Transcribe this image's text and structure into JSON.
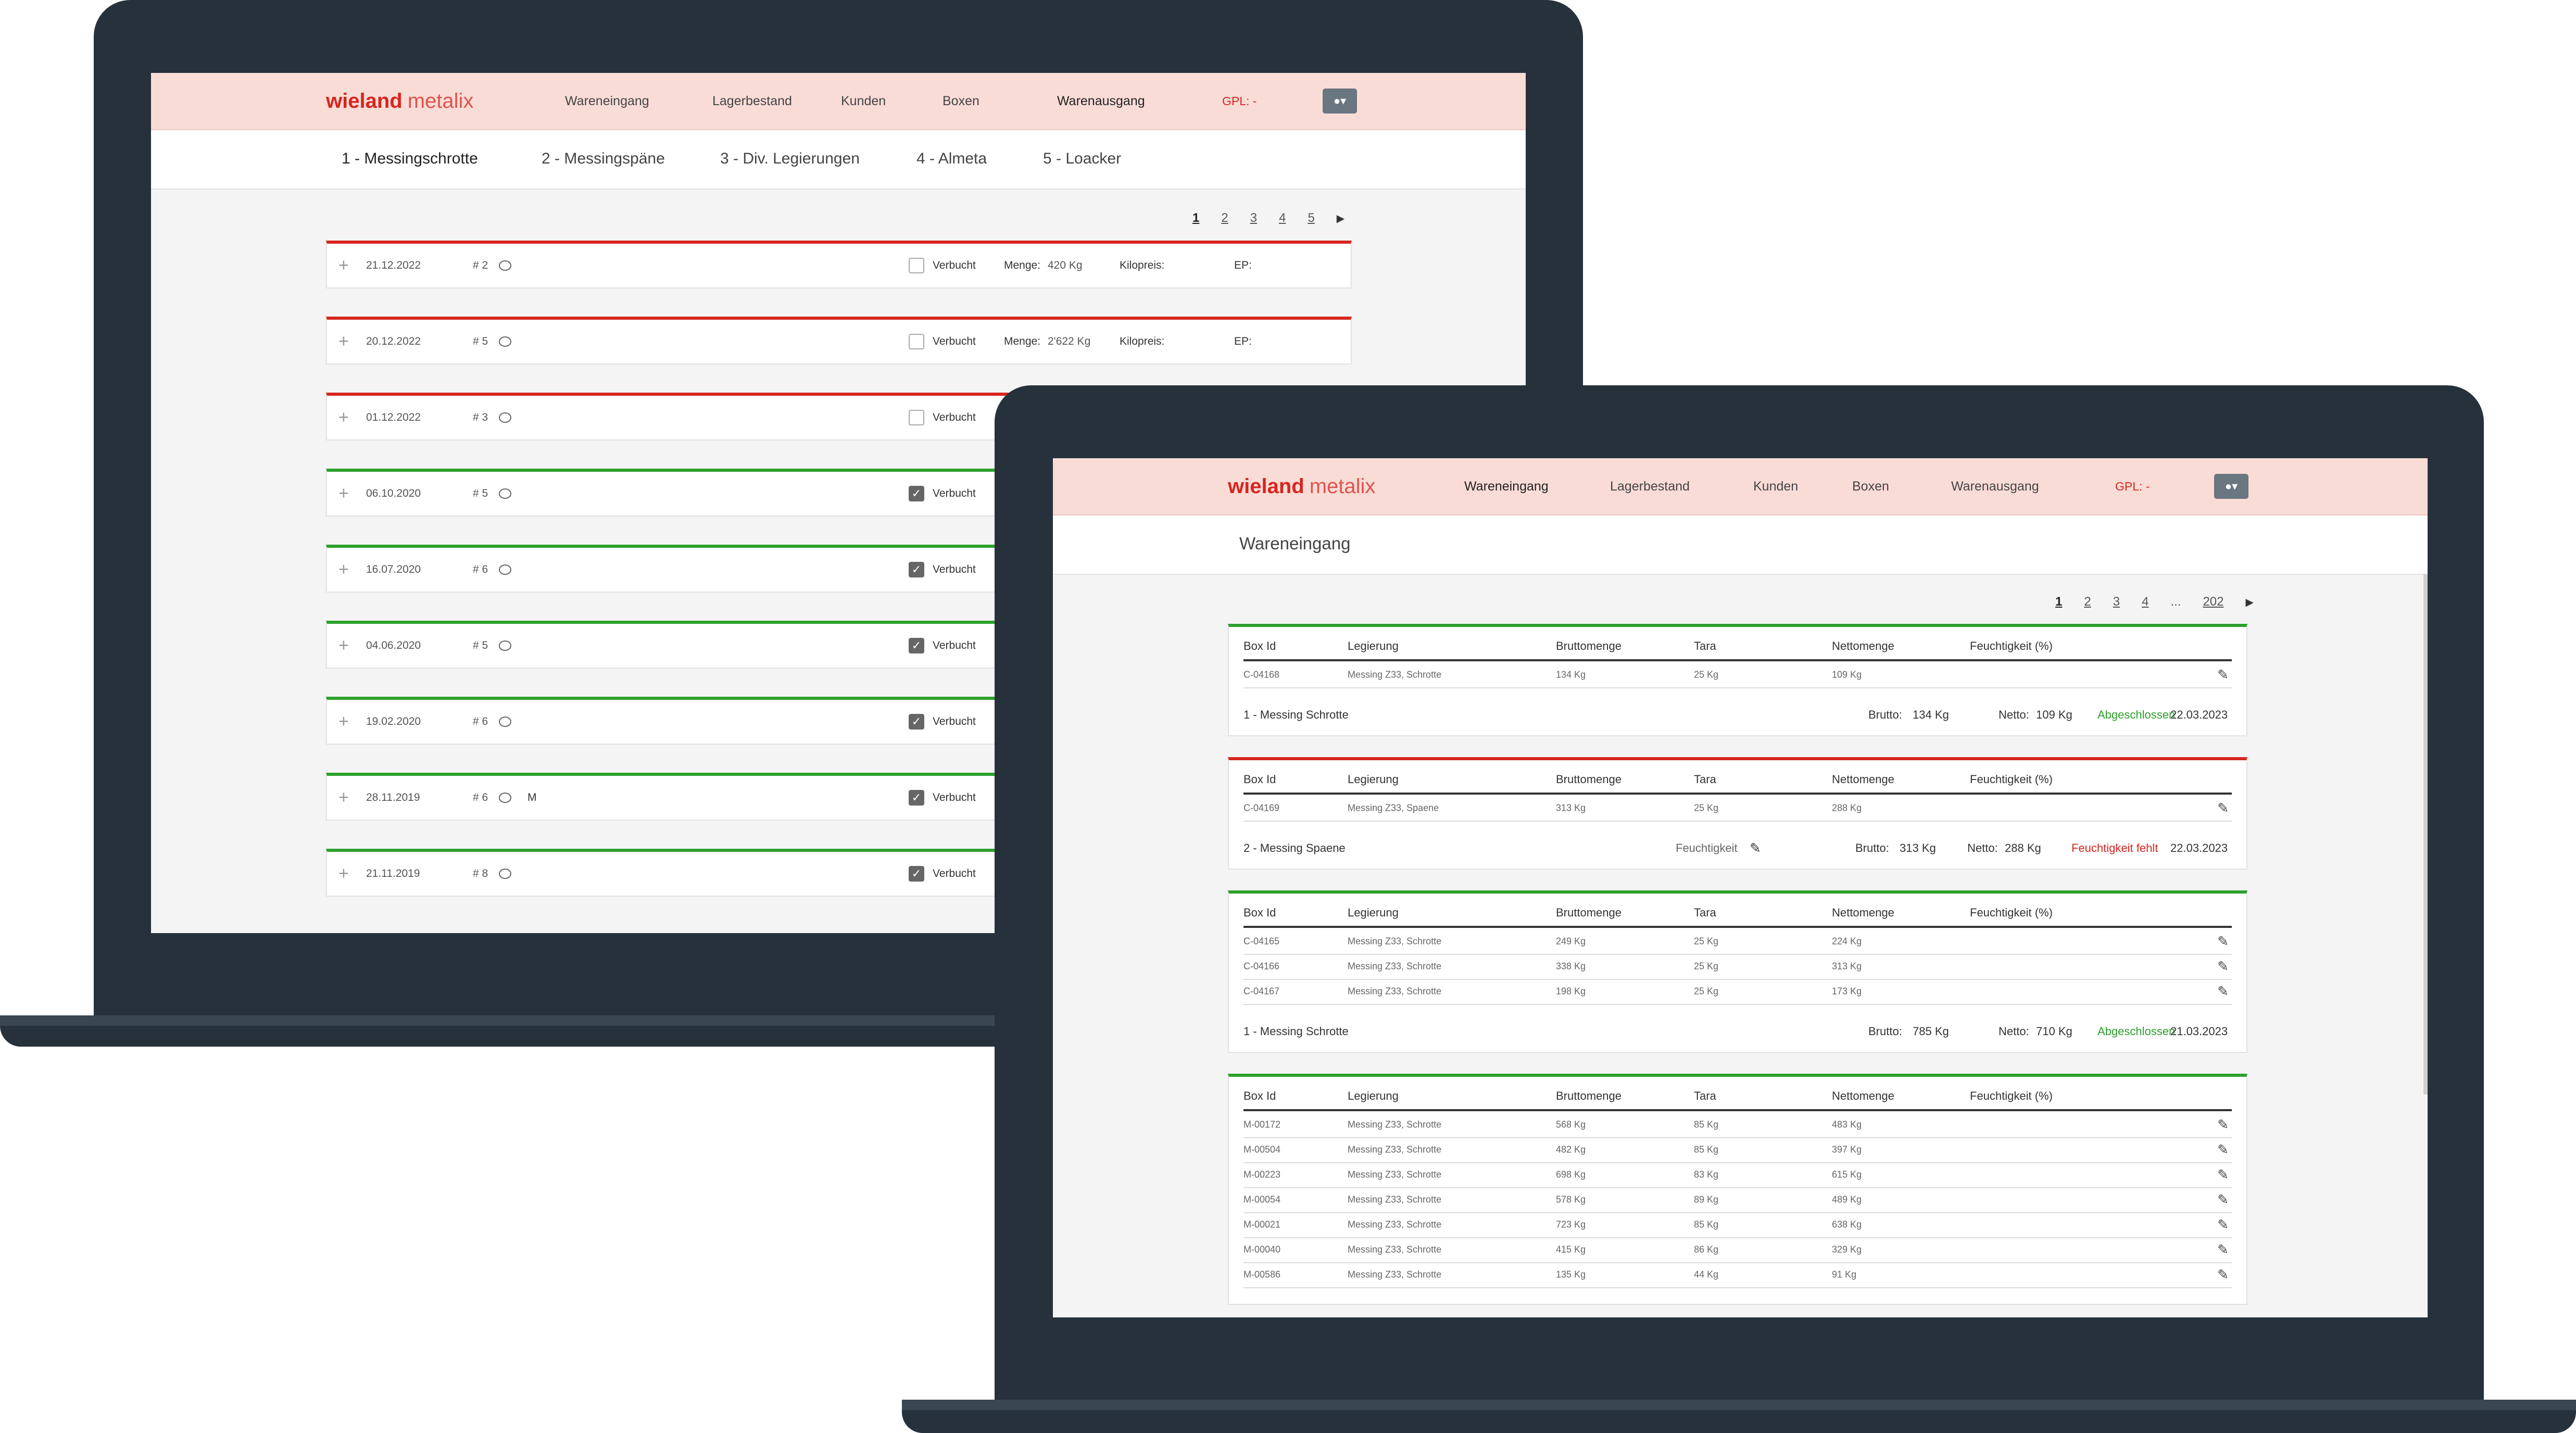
{
  "brand": {
    "bold": "wieland",
    "light": "metalix"
  },
  "nav": [
    "Wareneingang",
    "Lagerbestand",
    "Kunden",
    "Boxen",
    "Warenausgang"
  ],
  "gpl": "GPL: -",
  "user_icon": "user-icon",
  "left": {
    "tabs": [
      "1 - Messingschrotte",
      "2 - Messingspäne",
      "3 - Div. Legierungen",
      "4 - Almeta",
      "5 - Loacker"
    ],
    "pager": [
      "1",
      "2",
      "3",
      "4",
      "5"
    ],
    "labels": {
      "verbucht": "Verbucht",
      "menge": "Menge:",
      "kilopreis": "Kilopreis:",
      "ep": "EP:"
    },
    "rows": [
      {
        "date": "21.12.2022",
        "num": "# 2",
        "note": "",
        "checked": false,
        "menge": "420 Kg",
        "status": "red"
      },
      {
        "date": "20.12.2022",
        "num": "# 5",
        "note": "",
        "checked": false,
        "menge": "2'622 Kg",
        "status": "red"
      },
      {
        "date": "01.12.2022",
        "num": "# 3",
        "note": "",
        "checked": false,
        "menge": "",
        "status": "red"
      },
      {
        "date": "06.10.2020",
        "num": "# 5",
        "note": "",
        "checked": true,
        "menge": "",
        "status": "green"
      },
      {
        "date": "16.07.2020",
        "num": "# 6",
        "note": "",
        "checked": true,
        "menge": "",
        "status": "green"
      },
      {
        "date": "04.06.2020",
        "num": "# 5",
        "note": "",
        "checked": true,
        "menge": "",
        "status": "green"
      },
      {
        "date": "19.02.2020",
        "num": "# 6",
        "note": "",
        "checked": true,
        "menge": "",
        "status": "green"
      },
      {
        "date": "28.11.2019",
        "num": "# 6",
        "note": "M",
        "checked": true,
        "menge": "",
        "status": "green"
      },
      {
        "date": "21.11.2019",
        "num": "# 8",
        "note": "",
        "checked": true,
        "menge": "",
        "status": "green"
      }
    ]
  },
  "right": {
    "title": "Wareneingang",
    "pager": [
      "1",
      "2",
      "3",
      "4",
      "...",
      "202"
    ],
    "headers": [
      "Box Id",
      "Legierung",
      "Bruttomenge",
      "Tara",
      "Nettomenge",
      "Feuchtigkeit (%)"
    ],
    "labels": {
      "brutto": "Brutto:",
      "netto": "Netto:",
      "feuchtigkeit": "Feuchtigkeit"
    },
    "cards": [
      {
        "status": "green",
        "rows": [
          [
            "C-04168",
            "Messing Z33, Schrotte",
            "134 Kg",
            "25 Kg",
            "109 Kg"
          ]
        ],
        "footer": {
          "name": "1 - Messing Schrotte",
          "brutto": "134 Kg",
          "netto": "109 Kg",
          "state": "Abgeschlossen",
          "state_type": "ok",
          "date": "22.03.2023",
          "feucht": false
        }
      },
      {
        "status": "red",
        "rows": [
          [
            "C-04169",
            "Messing Z33, Spaene",
            "313 Kg",
            "25 Kg",
            "288 Kg"
          ]
        ],
        "footer": {
          "name": "2 - Messing Spaene",
          "brutto": "313 Kg",
          "netto": "288 Kg",
          "state": "Feuchtigkeit fehlt",
          "state_type": "err",
          "date": "22.03.2023",
          "feucht": true
        }
      },
      {
        "status": "green",
        "rows": [
          [
            "C-04165",
            "Messing Z33, Schrotte",
            "249 Kg",
            "25 Kg",
            "224 Kg"
          ],
          [
            "C-04166",
            "Messing Z33, Schrotte",
            "338 Kg",
            "25 Kg",
            "313 Kg"
          ],
          [
            "C-04167",
            "Messing Z33, Schrotte",
            "198 Kg",
            "25 Kg",
            "173 Kg"
          ]
        ],
        "footer": {
          "name": "1 - Messing Schrotte",
          "brutto": "785 Kg",
          "netto": "710 Kg",
          "state": "Abgeschlossen",
          "state_type": "ok",
          "date": "21.03.2023",
          "feucht": false
        }
      },
      {
        "status": "green",
        "rows": [
          [
            "M-00172",
            "Messing Z33, Schrotte",
            "568 Kg",
            "85 Kg",
            "483 Kg"
          ],
          [
            "M-00504",
            "Messing Z33, Schrotte",
            "482 Kg",
            "85 Kg",
            "397 Kg"
          ],
          [
            "M-00223",
            "Messing Z33, Schrotte",
            "698 Kg",
            "83 Kg",
            "615 Kg"
          ],
          [
            "M-00054",
            "Messing Z33, Schrotte",
            "578 Kg",
            "89 Kg",
            "489 Kg"
          ],
          [
            "M-00021",
            "Messing Z33, Schrotte",
            "723 Kg",
            "85 Kg",
            "638 Kg"
          ],
          [
            "M-00040",
            "Messing Z33, Schrotte",
            "415 Kg",
            "86 Kg",
            "329 Kg"
          ],
          [
            "M-00586",
            "Messing Z33, Schrotte",
            "135 Kg",
            "44 Kg",
            "91 Kg"
          ]
        ],
        "footer": null
      }
    ]
  },
  "colors": {
    "accent_red": "#d6261f",
    "ok_green": "#2ca02c",
    "nav_bg": "#fadcd7",
    "laptop": "#26313b"
  }
}
